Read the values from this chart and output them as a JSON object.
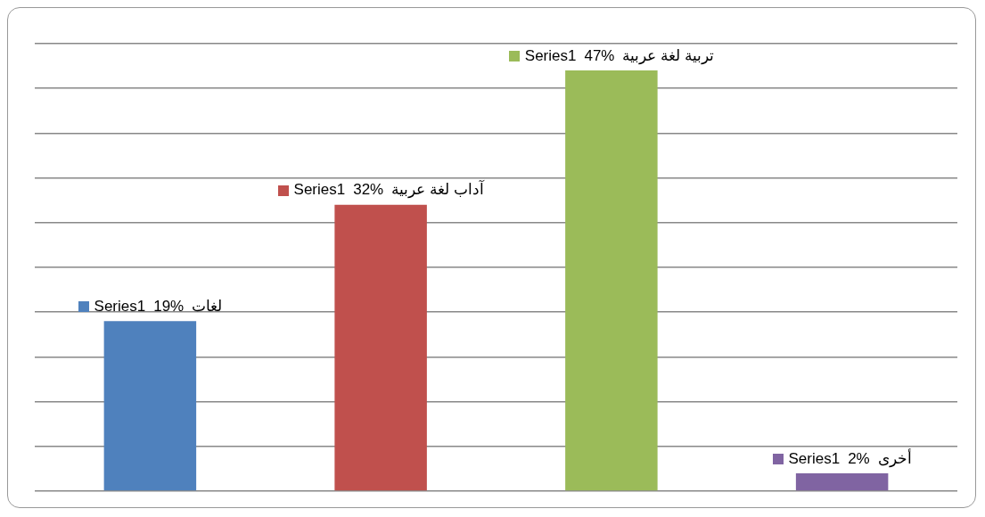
{
  "chart_data": {
    "type": "bar",
    "categories": [
      "لغات",
      "آداب لغة عربية",
      "تربية لغة عربية",
      "أخرى"
    ],
    "series": [
      {
        "name": "Series1",
        "colors": [
          "#4f81bd",
          "#c0504d",
          "#9bbb59",
          "#8064a2"
        ],
        "values": [
          19,
          32,
          47,
          2
        ],
        "value_labels": [
          "19%",
          "32%",
          "47%",
          "2%"
        ]
      }
    ],
    "grid": "y"
  }
}
